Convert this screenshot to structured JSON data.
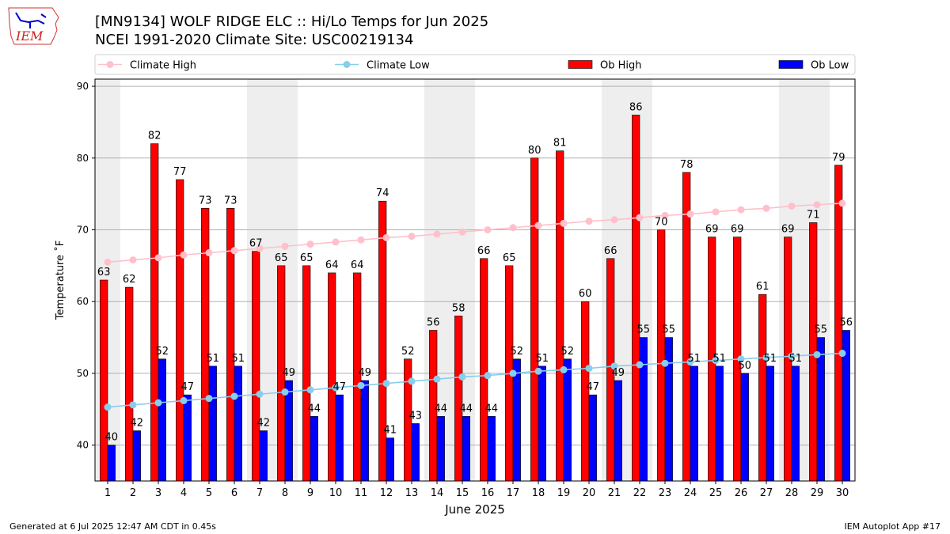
{
  "header": {
    "title_line1": "[MN9134] WOLF RIDGE ELC :: Hi/Lo Temps for Jun 2025",
    "title_line2": "NCEI 1991-2020 Climate Site: USC00219134",
    "logo_text": "IEM"
  },
  "footer": {
    "left": "Generated at 6 Jul 2025 12:47 AM CDT in 0.45s",
    "right": "IEM Autoplot App #17"
  },
  "colors": {
    "ob_high": "#ff0000",
    "ob_low": "#0000ff",
    "climate_high": "#ffc0cb",
    "climate_low": "#87ceeb",
    "weekend_shade": "#eeeeee"
  },
  "chart_data": {
    "type": "bar",
    "xlabel": "June 2025",
    "ylabel": "Temperature ˚F",
    "ylim": [
      35,
      91
    ],
    "yticks": [
      40,
      50,
      60,
      70,
      80,
      90
    ],
    "grid": "horizontal",
    "legend_position": "top",
    "categories": [
      "1",
      "2",
      "3",
      "4",
      "5",
      "6",
      "7",
      "8",
      "9",
      "10",
      "11",
      "12",
      "13",
      "14",
      "15",
      "16",
      "17",
      "18",
      "19",
      "20",
      "21",
      "22",
      "23",
      "24",
      "25",
      "26",
      "27",
      "28",
      "29",
      "30"
    ],
    "shaded_days": [
      1,
      7,
      8,
      14,
      15,
      21,
      22,
      28,
      29
    ],
    "series": [
      {
        "name": "Climate High",
        "kind": "line",
        "values": [
          65.5,
          65.8,
          66.1,
          66.5,
          66.8,
          67.1,
          67.4,
          67.7,
          68.0,
          68.3,
          68.6,
          68.9,
          69.1,
          69.4,
          69.7,
          70.0,
          70.3,
          70.6,
          70.9,
          71.2,
          71.4,
          71.7,
          72.0,
          72.2,
          72.5,
          72.8,
          73.0,
          73.3,
          73.5,
          73.7
        ]
      },
      {
        "name": "Climate Low",
        "kind": "line",
        "values": [
          45.3,
          45.6,
          45.9,
          46.2,
          46.5,
          46.8,
          47.1,
          47.4,
          47.7,
          48.0,
          48.3,
          48.6,
          48.9,
          49.2,
          49.5,
          49.7,
          50.0,
          50.3,
          50.5,
          50.7,
          51.0,
          51.2,
          51.4,
          51.6,
          51.8,
          52.0,
          52.2,
          52.4,
          52.6,
          52.8
        ]
      },
      {
        "name": "Ob High",
        "kind": "bar",
        "values": [
          63,
          62,
          82,
          77,
          73,
          73,
          67,
          65,
          65,
          64,
          64,
          74,
          52,
          56,
          58,
          66,
          65,
          80,
          81,
          60,
          66,
          86,
          70,
          78,
          69,
          69,
          61,
          69,
          71,
          79
        ]
      },
      {
        "name": "Ob Low",
        "kind": "bar",
        "values": [
          40,
          42,
          52,
          47,
          51,
          51,
          42,
          49,
          44,
          47,
          49,
          41,
          43,
          44,
          44,
          44,
          52,
          51,
          52,
          47,
          49,
          55,
          55,
          51,
          51,
          50,
          51,
          51,
          55,
          56
        ]
      }
    ]
  }
}
